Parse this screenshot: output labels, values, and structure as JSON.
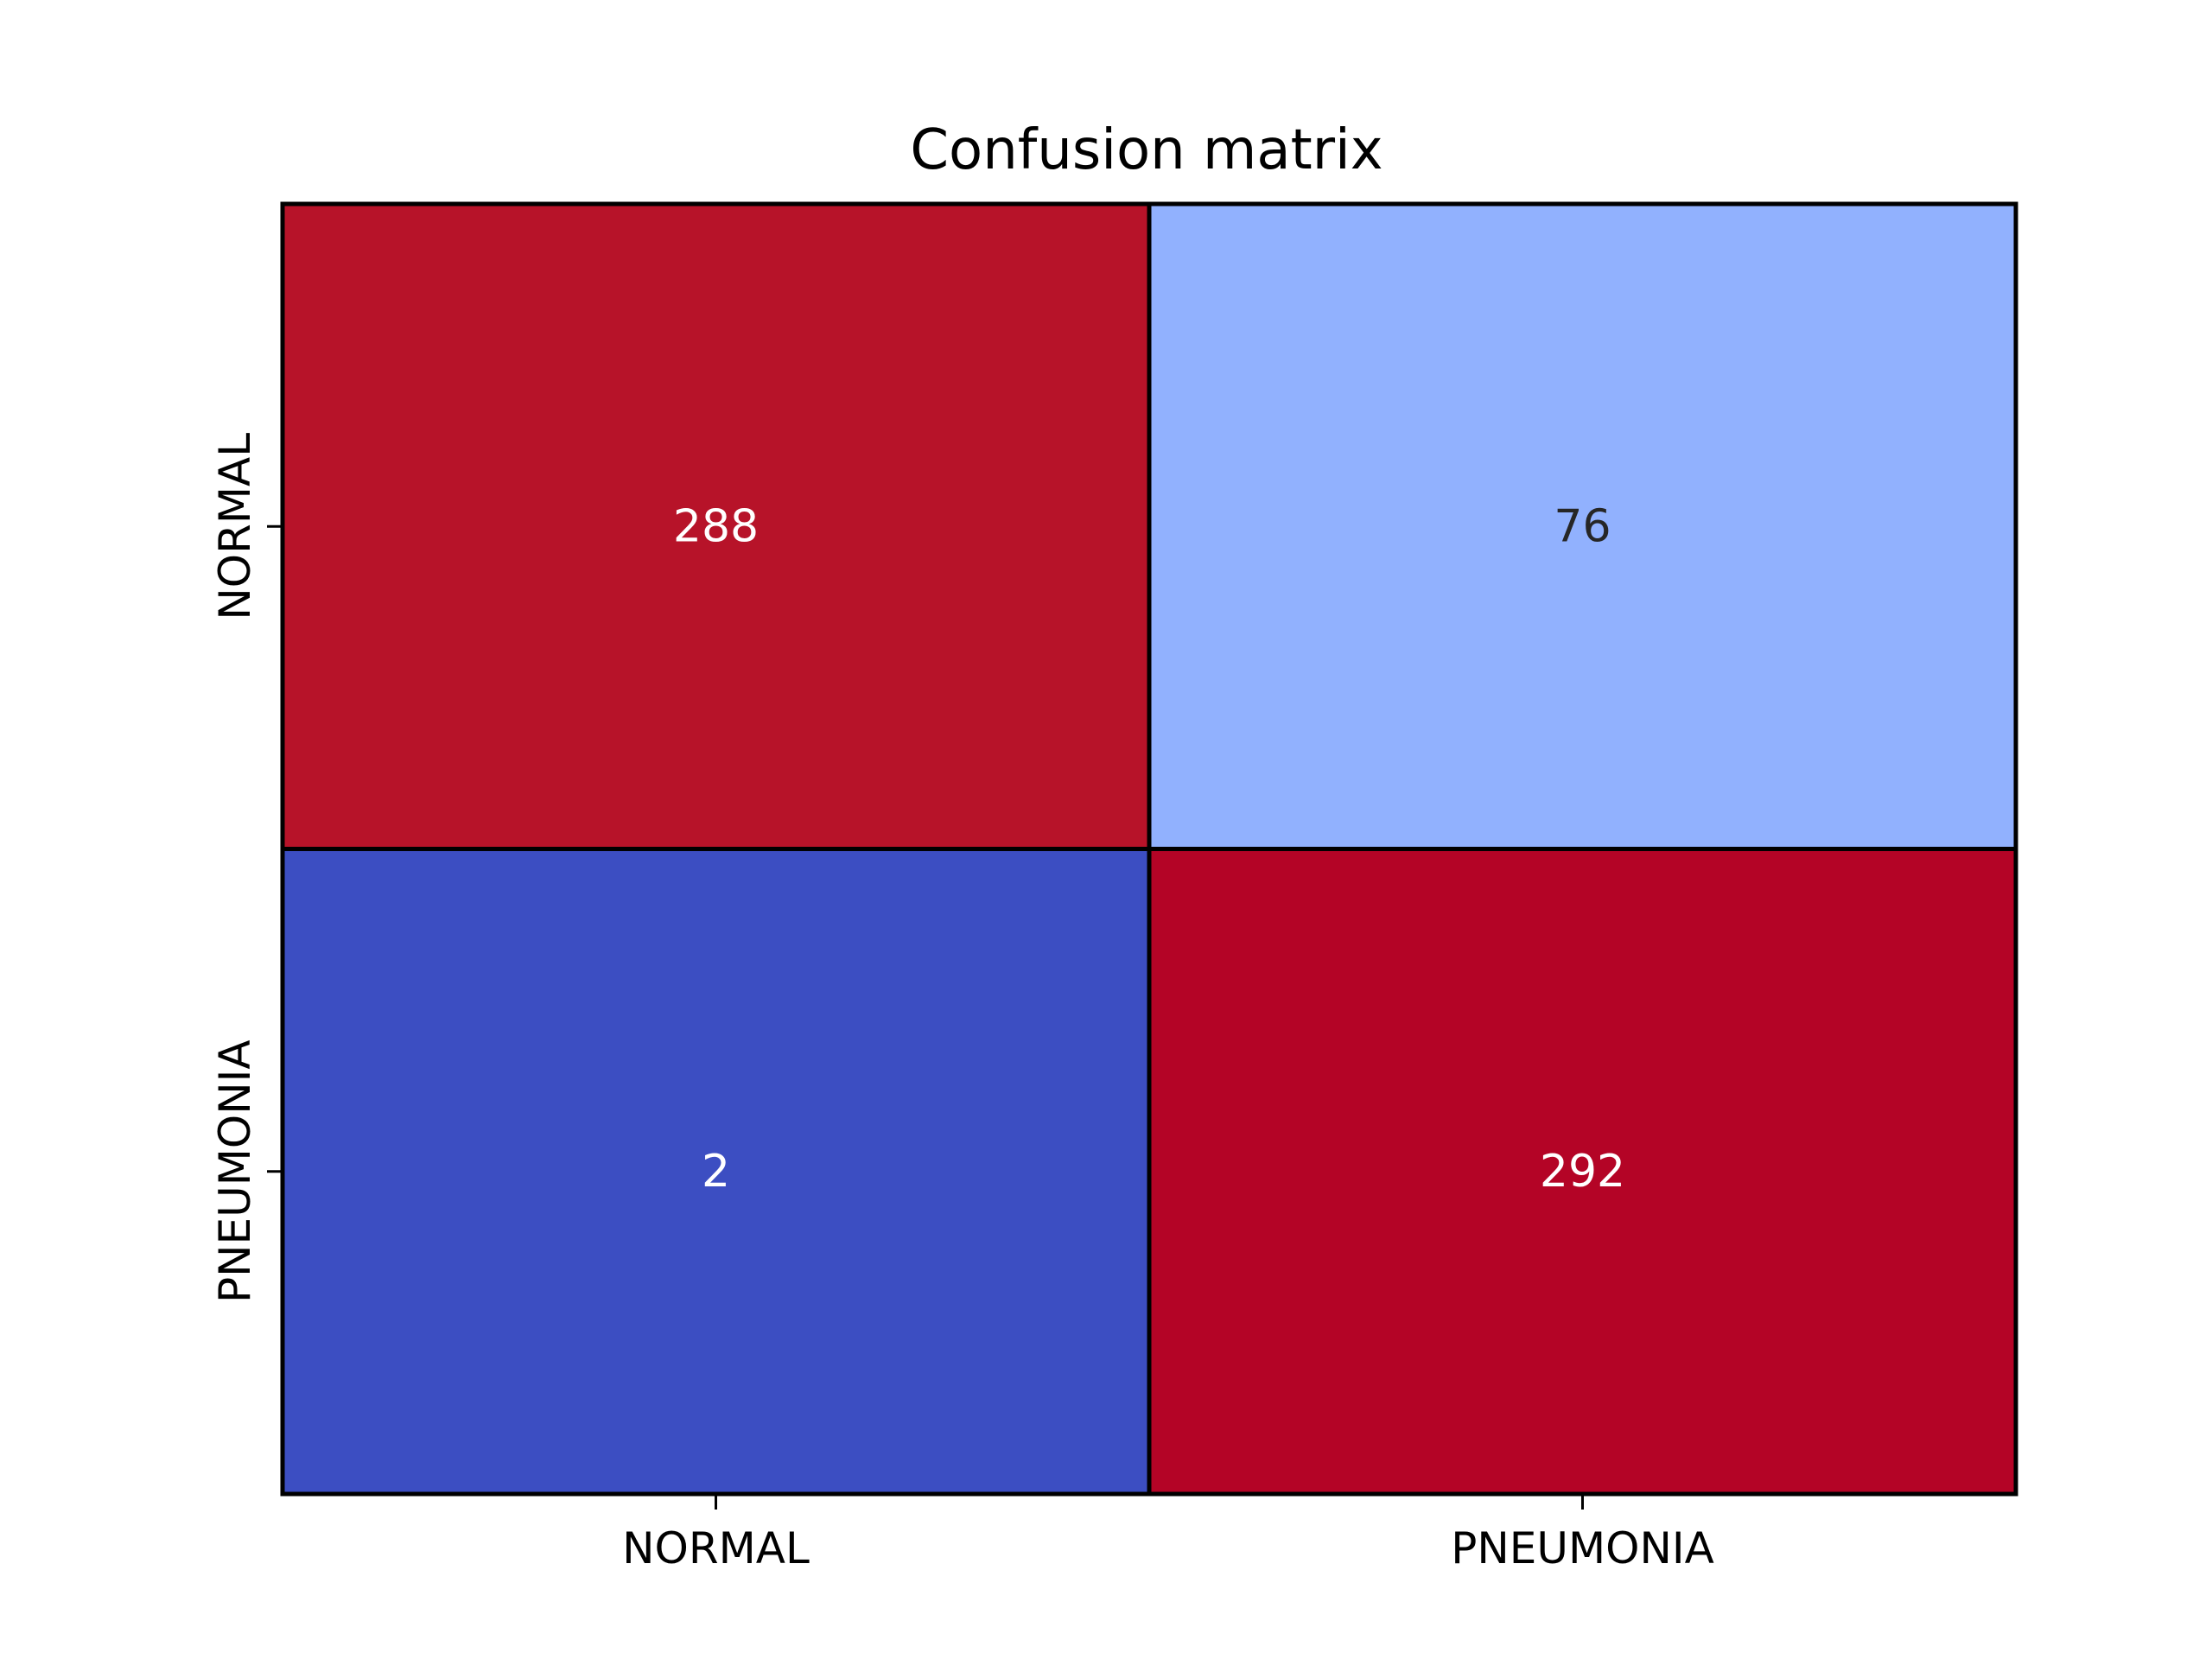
{
  "chart_data": {
    "type": "heatmap",
    "title": "Confusion matrix",
    "xlabel": "",
    "ylabel": "",
    "x_categories": [
      "NORMAL",
      "PNEUMONIA"
    ],
    "y_categories": [
      "NORMAL",
      "PNEUMONIA"
    ],
    "values": [
      [
        288,
        76
      ],
      [
        2,
        292
      ]
    ],
    "colormap": "coolwarm",
    "value_range": [
      2,
      292
    ],
    "colorbar": false,
    "grid": false,
    "cell_colors": [
      [
        "#b71329",
        "#91b1fe"
      ],
      [
        "#3c4ec2",
        "#b40426"
      ]
    ],
    "annotation_colors": [
      [
        "#ffffff",
        "#262626"
      ],
      [
        "#ffffff",
        "#ffffff"
      ]
    ]
  }
}
